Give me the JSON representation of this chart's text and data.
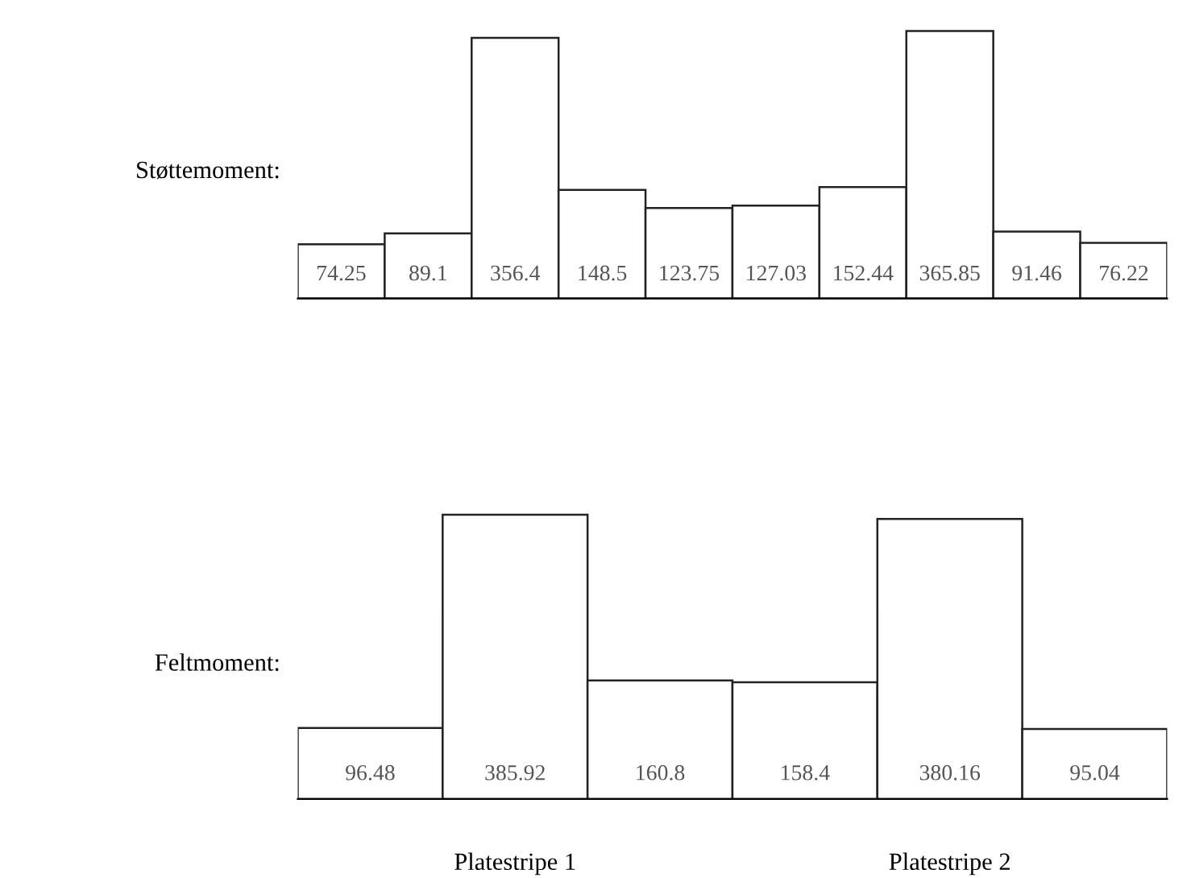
{
  "chart_data": [
    {
      "type": "bar",
      "ylabel": "Støttemoment:",
      "categories": [
        null,
        null,
        null,
        null,
        null,
        null,
        null,
        null,
        null,
        null
      ],
      "values": [
        74.25,
        89.1,
        356.4,
        148.5,
        123.75,
        127.03,
        152.44,
        365.85,
        91.46,
        76.22
      ],
      "color": "#ffffff",
      "data_labels": true
    },
    {
      "type": "bar",
      "ylabel": "Feltmoment:",
      "categories": [
        null,
        null,
        null,
        null,
        null,
        null
      ],
      "values": [
        96.48,
        385.92,
        160.8,
        158.4,
        380.16,
        95.04
      ],
      "color": "#ffffff",
      "data_labels": true,
      "annotations": [
        "Platestripe 1",
        "Platestripe 2"
      ]
    }
  ]
}
